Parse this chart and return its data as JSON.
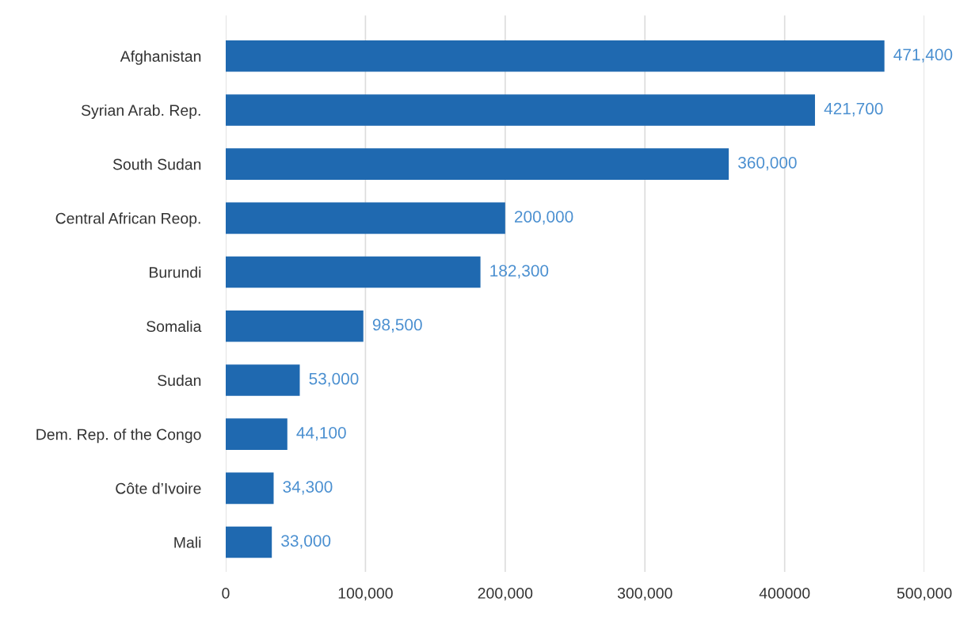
{
  "chart_data": {
    "type": "bar",
    "orientation": "horizontal",
    "categories": [
      "Afghanistan",
      "Syrian Arab. Rep.",
      "South Sudan",
      "Central African Reop.",
      "Burundi",
      "Somalia",
      "Sudan",
      "Dem. Rep. of the Congo",
      "Côte d’Ivoire",
      "Mali"
    ],
    "values": [
      471400,
      421700,
      360000,
      200000,
      182300,
      98500,
      53000,
      44100,
      34300,
      33000
    ],
    "value_labels": [
      "471,400",
      "421,700",
      "360,000",
      "200,000",
      "182,300",
      "98,500",
      "53,000",
      "44,100",
      "34,300",
      "33,000"
    ],
    "color": "#1f69b0",
    "xlim": [
      0,
      500000
    ],
    "xticks": [
      0,
      {
        "value": 100000,
        "label": "100,000"
      },
      {
        "value": 200000,
        "label": "200,000"
      },
      {
        "value": 300000,
        "label": "300,000"
      },
      400000,
      {
        "value": 500000,
        "label": "500,000"
      }
    ],
    "grid": "x"
  }
}
